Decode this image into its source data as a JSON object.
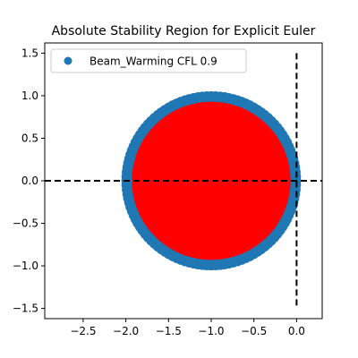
{
  "chart_data": {
    "type": "scatter",
    "title": "Absolute Stability Region for Explicit Euler",
    "xlabel": "",
    "ylabel": "",
    "xlim": [
      -2.95,
      0.3
    ],
    "ylim": [
      -1.62,
      1.62
    ],
    "x_ticks": [
      -2.5,
      -2.0,
      -1.5,
      -1.0,
      -0.5,
      0.0
    ],
    "x_tick_labels": [
      "−2.5",
      "−2.0",
      "−1.5",
      "−1.0",
      "−0.5",
      "0.0"
    ],
    "y_ticks": [
      -1.5,
      -1.0,
      -0.5,
      0.0,
      0.5,
      1.0,
      1.5
    ],
    "y_tick_labels": [
      "−1.5",
      "−1.0",
      "−0.5",
      "0.0",
      "0.5",
      "1.0",
      "1.5"
    ],
    "grid": false,
    "legend_position": "upper-left",
    "region": {
      "shape": "disk",
      "center": [
        -1.0,
        0.0
      ],
      "radius": 1.0,
      "fill_color": "#ff0000"
    },
    "series": [
      {
        "name": "Beam_Warming CFL 0.9",
        "kind": "points-on-circle",
        "center": [
          -1.0,
          0.0
        ],
        "radius": 0.99,
        "point_count": 120,
        "color": "#1f77b4"
      }
    ],
    "reference_lines": [
      {
        "orientation": "horizontal",
        "y": 0.0,
        "style": "dashed",
        "color": "#000000"
      },
      {
        "orientation": "vertical",
        "x": 0.0,
        "y_range": [
          -1.5,
          1.5
        ],
        "style": "dashed",
        "color": "#000000"
      }
    ]
  }
}
